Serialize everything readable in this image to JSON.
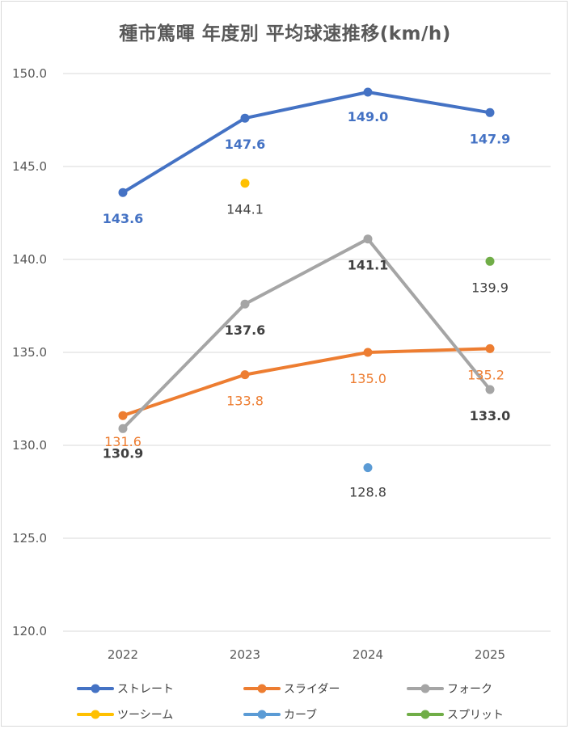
{
  "chart_data": {
    "type": "line",
    "title": "種市篤暉 年度別 平均球速推移(km/h)",
    "categories": [
      "2022",
      "2023",
      "2024",
      "2025"
    ],
    "ylim": [
      120.0,
      150.0
    ],
    "yticks": [
      "150.0",
      "145.0",
      "140.0",
      "135.0",
      "130.0",
      "125.0",
      "120.0"
    ],
    "ytick_values": [
      150,
      145,
      140,
      135,
      130,
      125,
      120
    ],
    "grid": true,
    "legend_position": "bottom",
    "series": [
      {
        "name": "ストレート",
        "color": "#4472c4",
        "values": [
          143.6,
          147.6,
          149.0,
          147.9
        ],
        "labels": [
          "143.6",
          "147.6",
          "149.0",
          "147.9"
        ],
        "label_color": "#4472c4",
        "bold": true
      },
      {
        "name": "スライダー",
        "color": "#ed7d31",
        "values": [
          131.6,
          133.8,
          135.0,
          135.2
        ],
        "labels": [
          "131.6",
          "133.8",
          "135.0",
          "135.2"
        ],
        "label_color": "#ed7d31",
        "bold": false
      },
      {
        "name": "フォーク",
        "color": "#a5a5a5",
        "values": [
          130.9,
          137.6,
          141.1,
          133.0
        ],
        "labels": [
          "130.9",
          "137.6",
          "141.1",
          "133.0"
        ],
        "label_color": "#404040",
        "bold": true
      },
      {
        "name": "ツーシーム",
        "color": "#ffc000",
        "values": [
          null,
          144.1,
          null,
          null
        ],
        "labels": [
          null,
          "144.1",
          null,
          null
        ],
        "label_color": "#404040",
        "bold": false
      },
      {
        "name": "カーブ",
        "color": "#5b9bd5",
        "values": [
          null,
          null,
          128.8,
          null
        ],
        "labels": [
          null,
          null,
          "128.8",
          null
        ],
        "label_color": "#404040",
        "bold": false
      },
      {
        "name": "スプリット",
        "color": "#70ad47",
        "values": [
          null,
          null,
          null,
          139.9
        ],
        "labels": [
          null,
          null,
          null,
          "139.9"
        ],
        "label_color": "#404040",
        "bold": false
      }
    ]
  }
}
